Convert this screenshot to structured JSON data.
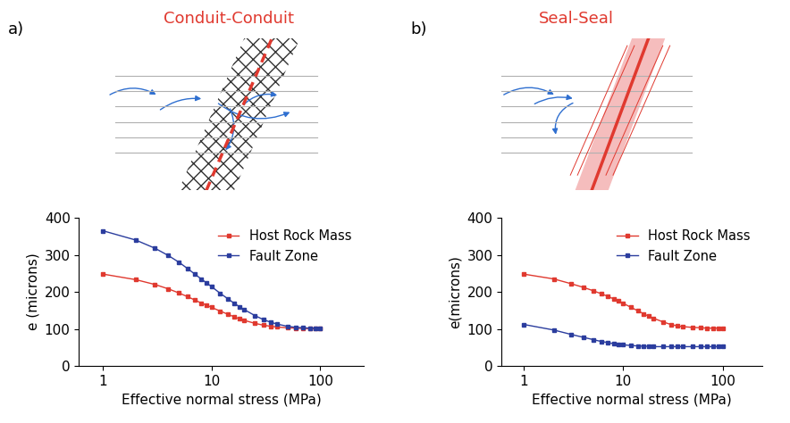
{
  "chart_data": [
    {
      "type": "line",
      "title": "Conduit-Conduit",
      "annotations": [
        "a)"
      ],
      "x_label": "Effective normal stress (MPa)",
      "y_label": "e (microns)",
      "log": "x",
      "xlim": [
        0.6,
        250
      ],
      "xticks": [
        1,
        10,
        100
      ],
      "ylim": [
        0,
        400
      ],
      "yticks": [
        0,
        100,
        200,
        300,
        400
      ],
      "legend": "upper right",
      "marker": "square",
      "x": [
        1,
        2,
        3,
        4,
        5,
        6,
        7,
        8,
        9,
        10,
        12,
        14,
        16,
        18,
        20,
        25,
        30,
        35,
        40,
        50,
        60,
        70,
        80,
        90,
        100
      ],
      "series": [
        {
          "name": "Host Rock Mass",
          "color": "#e0392f",
          "values": [
            248,
            233,
            220,
            208,
            197,
            187,
            178,
            170,
            164,
            158,
            148,
            140,
            133,
            127,
            123,
            115,
            110,
            107,
            105,
            103,
            102,
            101,
            101,
            101,
            101
          ]
        },
        {
          "name": "Fault Zone",
          "color": "#2b3d9e",
          "values": [
            365,
            340,
            318,
            298,
            280,
            263,
            248,
            235,
            224,
            214,
            196,
            182,
            170,
            160,
            152,
            136,
            125,
            118,
            113,
            107,
            104,
            103,
            102,
            102,
            101
          ]
        }
      ]
    },
    {
      "type": "line",
      "title": "Seal-Seal",
      "annotations": [
        "b)"
      ],
      "x_label": "Effective normal stress (MPa)",
      "y_label": "e(microns)",
      "log": "x",
      "xlim": [
        0.6,
        250
      ],
      "xticks": [
        1,
        10,
        100
      ],
      "ylim": [
        0,
        400
      ],
      "yticks": [
        0,
        100,
        200,
        300,
        400
      ],
      "legend": "upper right",
      "marker": "square",
      "x": [
        1,
        2,
        3,
        4,
        5,
        6,
        7,
        8,
        9,
        10,
        12,
        14,
        16,
        18,
        20,
        25,
        30,
        35,
        40,
        50,
        60,
        70,
        80,
        90,
        100
      ],
      "series": [
        {
          "name": "Host Rock Mass",
          "color": "#e0392f",
          "values": [
            248,
            235,
            222,
            212,
            203,
            195,
            188,
            181,
            175,
            169,
            158,
            149,
            141,
            134,
            129,
            119,
            112,
            108,
            106,
            104,
            103,
            102,
            102,
            102,
            102
          ]
        },
        {
          "name": "Fault Zone",
          "color": "#2b3d9e",
          "values": [
            112,
            97,
            85,
            77,
            71,
            66,
            63,
            60,
            58,
            57,
            55,
            54,
            53,
            53,
            52,
            52,
            52,
            52,
            52,
            52,
            52,
            52,
            52,
            52,
            52
          ]
        }
      ]
    }
  ]
}
